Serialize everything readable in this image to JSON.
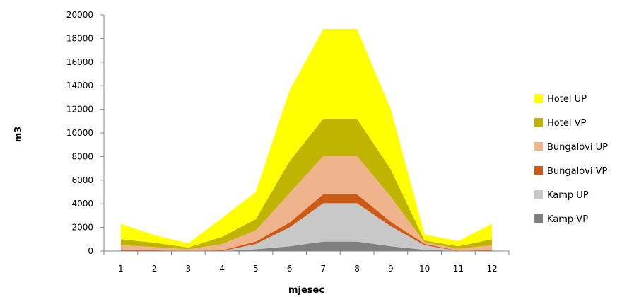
{
  "chart_data": {
    "type": "area",
    "stacked": true,
    "x": [
      1,
      2,
      3,
      4,
      5,
      6,
      7,
      8,
      9,
      10,
      11,
      12
    ],
    "xlabel": "mjesec",
    "ylabel": "m3",
    "ylim": [
      0,
      20000
    ],
    "yticks": [
      0,
      2000,
      4000,
      6000,
      8000,
      10000,
      12000,
      14000,
      16000,
      18000,
      20000
    ],
    "grid": false,
    "legend_position": "right",
    "series": [
      {
        "name": "Kamp VP",
        "color": "#7f7f7f",
        "values": [
          0,
          0,
          0,
          0,
          150,
          400,
          800,
          800,
          400,
          100,
          0,
          0
        ]
      },
      {
        "name": "Kamp UP",
        "color": "#c8c8c8",
        "values": [
          0,
          0,
          0,
          0,
          450,
          1600,
          3250,
          3250,
          1700,
          400,
          0,
          0
        ]
      },
      {
        "name": "Bungalovi VP",
        "color": "#cc5a14",
        "values": [
          80,
          60,
          30,
          60,
          200,
          400,
          750,
          750,
          380,
          110,
          30,
          80
        ]
      },
      {
        "name": "Bungalovi UP",
        "color": "#f0b48c",
        "values": [
          420,
          290,
          120,
          540,
          950,
          2500,
          3250,
          3250,
          2120,
          140,
          170,
          420
        ]
      },
      {
        "name": "Hotel VP",
        "color": "#bfb400",
        "values": [
          500,
          350,
          150,
          600,
          950,
          2700,
          3150,
          3150,
          2300,
          150,
          200,
          500
        ]
      },
      {
        "name": "Hotel UP",
        "color": "#ffff00",
        "values": [
          1300,
          650,
          350,
          1600,
          2300,
          6000,
          7600,
          7600,
          5100,
          500,
          450,
          1300
        ]
      }
    ]
  }
}
